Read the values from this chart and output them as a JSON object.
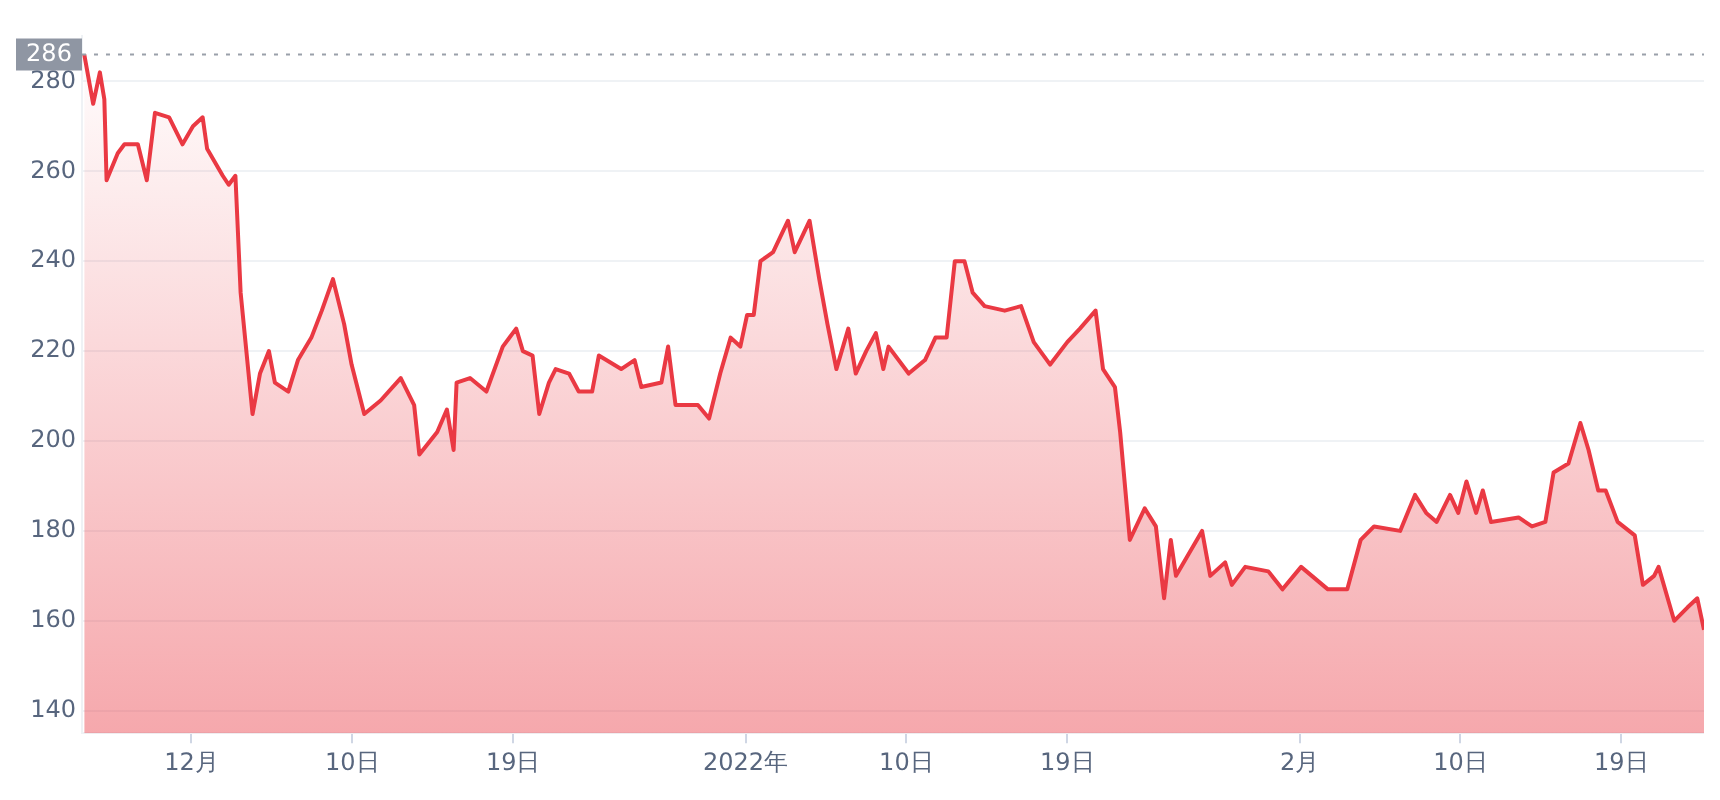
{
  "chart_data": {
    "type": "area",
    "xlim": [
      "2021-11-24T21:00",
      "2022-02-23T15:00"
    ],
    "xticks": [
      {
        "value": "2021-12-01",
        "label": "12月"
      },
      {
        "value": "2021-12-10",
        "label": "10日"
      },
      {
        "value": "2021-12-19",
        "label": "19日"
      },
      {
        "value": "2022-01-01",
        "label": "2022年"
      },
      {
        "value": "2022-01-10",
        "label": "10日"
      },
      {
        "value": "2022-01-19",
        "label": "19日"
      },
      {
        "value": "2022-02-01",
        "label": "2月"
      },
      {
        "value": "2022-02-10",
        "label": "10日"
      },
      {
        "value": "2022-02-19",
        "label": "19日"
      }
    ],
    "ylim": [
      135,
      290
    ],
    "yticks": [
      140,
      160,
      180,
      200,
      220,
      240,
      260,
      280
    ],
    "grid": "y",
    "legend": false,
    "ref_lines": [
      {
        "axis": "y",
        "value": 286,
        "label": "286",
        "line_style": "dotted",
        "color": "#9aa0aa"
      }
    ],
    "series": [
      {
        "color": "#ea3943",
        "x": [
          "2021-11-25T00:00",
          "2021-11-25T12:00",
          "2021-11-25T21:00",
          "2021-11-26T03:00",
          "2021-11-26T06:00",
          "2021-11-26T21:00",
          "2021-11-27T06:00",
          "2021-11-28T00:00",
          "2021-11-28T12:00",
          "2021-11-28T23:00",
          "2021-11-29T18:00",
          "2021-11-30T12:00",
          "2021-12-01T02:00",
          "2021-12-01T15:00",
          "2021-12-01T21:00",
          "2021-12-02T18:00",
          "2021-12-03T02:00",
          "2021-12-03T11:00",
          "2021-12-03T18:00",
          "2021-12-04T10:00",
          "2021-12-04T20:00",
          "2021-12-05T08:00",
          "2021-12-05T16:00",
          "2021-12-06T10:00",
          "2021-12-06T23:00",
          "2021-12-07T17:00",
          "2021-12-08T07:00",
          "2021-12-08T22:00",
          "2021-12-09T13:00",
          "2021-12-09T23:00",
          "2021-12-10T16:00",
          "2021-12-11T14:00",
          "2021-12-12T17:00",
          "2021-12-13T11:00",
          "2021-12-13T18:00",
          "2021-12-14T18:00",
          "2021-12-15T07:00",
          "2021-12-15T16:00",
          "2021-12-15T20:00",
          "2021-12-16T14:00",
          "2021-12-17T12:00",
          "2021-12-18T10:00",
          "2021-12-19T04:00",
          "2021-12-19T13:00",
          "2021-12-20T02:00",
          "2021-12-20T11:00",
          "2021-12-21T00:00",
          "2021-12-21T09:00",
          "2021-12-22T03:00",
          "2021-12-22T16:00",
          "2021-12-23T10:00",
          "2021-12-23T19:00",
          "2021-12-25T01:00",
          "2021-12-25T19:00",
          "2021-12-26T04:00",
          "2021-12-27T07:00",
          "2021-12-27T16:00",
          "2021-12-28T02:00",
          "2021-12-29T08:00",
          "2021-12-29T23:00",
          "2021-12-30T14:00",
          "2021-12-31T04:00",
          "2021-12-31T17:00",
          "2022-01-01T02:00",
          "2022-01-01T11:00",
          "2022-01-01T20:00",
          "2022-01-02T13:00",
          "2022-01-03T09:00",
          "2022-01-03T18:00",
          "2022-01-04T14:00",
          "2022-01-05T03:00",
          "2022-01-05T14:00",
          "2022-01-06T02:00",
          "2022-01-06T18:00",
          "2022-01-07T04:00",
          "2022-01-07T18:00",
          "2022-01-08T07:00",
          "2022-01-08T17:00",
          "2022-01-09T00:00",
          "2022-01-10T03:00",
          "2022-01-11T01:00",
          "2022-01-11T15:00",
          "2022-01-12T06:00",
          "2022-01-12T17:00",
          "2022-01-13T06:00",
          "2022-01-13T17:00",
          "2022-01-14T09:00",
          "2022-01-15T12:00",
          "2022-01-16T10:00",
          "2022-01-17T03:00",
          "2022-01-18T01:00",
          "2022-01-19T00:00",
          "2022-01-19T17:00",
          "2022-01-20T14:00",
          "2022-01-21T00:00",
          "2022-01-21T16:00",
          "2022-01-21T23:00",
          "2022-01-22T12:00",
          "2022-01-23T08:00",
          "2022-01-23T23:00",
          "2022-01-24T10:00",
          "2022-01-24T19:00",
          "2022-01-25T02:00",
          "2022-01-26T13:00",
          "2022-01-27T00:00",
          "2022-01-27T20:00",
          "2022-01-28T05:00",
          "2022-01-28T23:00",
          "2022-01-30T06:00",
          "2022-01-31T01:00",
          "2022-02-01T02:00",
          "2022-02-02T14:00",
          "2022-02-03T16:00",
          "2022-02-04T10:00",
          "2022-02-05T04:00",
          "2022-02-06T15:00",
          "2022-02-07T11:00",
          "2022-02-08T02:00",
          "2022-02-08T16:00",
          "2022-02-09T10:00",
          "2022-02-09T21:00",
          "2022-02-10T08:00",
          "2022-02-10T21:00",
          "2022-02-11T06:00",
          "2022-02-11T17:00",
          "2022-02-13T06:00",
          "2022-02-14T00:00",
          "2022-02-14T18:00",
          "2022-02-15T05:00",
          "2022-02-16T01:00",
          "2022-02-16T17:00",
          "2022-02-17T04:00",
          "2022-02-17T17:00",
          "2022-02-18T03:00",
          "2022-02-18T19:00",
          "2022-02-19T18:00",
          "2022-02-20T05:00",
          "2022-02-20T20:00",
          "2022-02-21T02:00",
          "2022-02-21T23:00",
          "2022-02-22T17:00",
          "2022-02-23T06:00",
          "2022-02-23T15:00"
        ],
        "values": [
          286,
          275,
          282,
          276,
          258,
          264,
          266,
          266,
          258,
          273,
          272,
          266,
          270,
          272,
          265,
          259,
          257,
          259,
          233,
          206,
          215,
          220,
          213,
          211,
          218,
          223,
          229,
          236,
          226,
          217,
          206,
          209,
          214,
          208,
          197,
          202,
          207,
          198,
          213,
          214,
          211,
          221,
          225,
          220,
          219,
          206,
          213,
          216,
          215,
          211,
          211,
          219,
          216,
          218,
          212,
          213,
          221,
          208,
          208,
          205,
          215,
          223,
          221,
          228,
          228,
          240,
          242,
          249,
          242,
          249,
          236,
          226,
          216,
          225,
          215,
          220,
          224,
          216,
          221,
          215,
          218,
          223,
          223,
          240,
          240,
          233,
          230,
          229,
          230,
          222,
          217,
          222,
          225,
          229,
          216,
          212,
          202,
          178,
          185,
          181,
          165,
          178,
          170,
          180,
          170,
          173,
          168,
          172,
          171,
          167,
          172,
          167,
          167,
          178,
          181,
          180,
          188,
          184,
          182,
          188,
          184,
          191,
          184,
          189,
          182,
          183,
          181,
          182,
          193,
          195,
          204,
          198,
          189,
          189,
          182,
          179,
          168,
          170,
          172,
          160,
          163,
          165,
          158
        ]
      }
    ]
  }
}
